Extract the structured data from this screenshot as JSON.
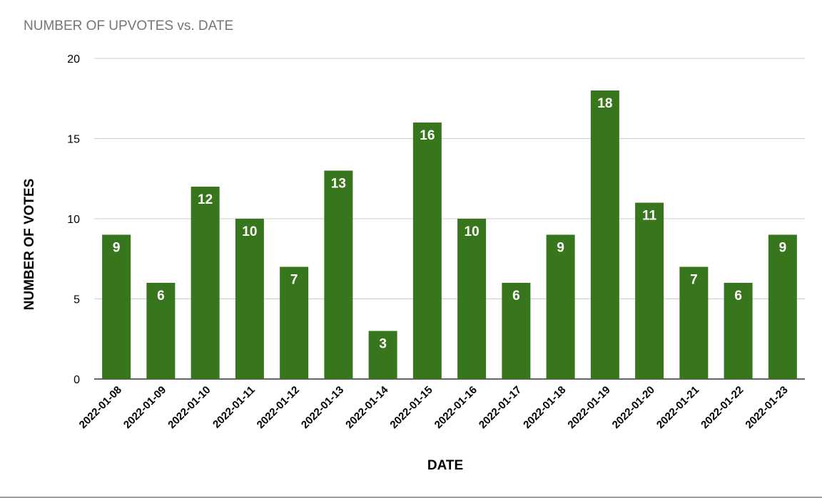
{
  "chart_data": {
    "type": "bar",
    "title": "NUMBER OF UPVOTES vs. DATE",
    "xlabel": "DATE",
    "ylabel": "NUMBER OF VOTES",
    "ylim": [
      0,
      20
    ],
    "yticks": [
      "0",
      "5",
      "10",
      "15",
      "20"
    ],
    "grid": true,
    "categories": [
      "2022-01-08",
      "2022-01-09",
      "2022-01-10",
      "2022-01-11",
      "2022-01-12",
      "2022-01-13",
      "2022-01-14",
      "2022-01-15",
      "2022-01-16",
      "2022-01-17",
      "2022-01-18",
      "2022-01-19",
      "2022-01-20",
      "2022-01-21",
      "2022-01-22",
      "2022-01-23"
    ],
    "values": [
      9,
      6,
      12,
      10,
      7,
      13,
      3,
      16,
      10,
      6,
      9,
      18,
      11,
      7,
      6,
      9
    ],
    "colors": {
      "bar": "#38761d",
      "grid": "#cccccc",
      "axis": "#333333",
      "label": "#ffffff",
      "title": "#757575"
    }
  }
}
